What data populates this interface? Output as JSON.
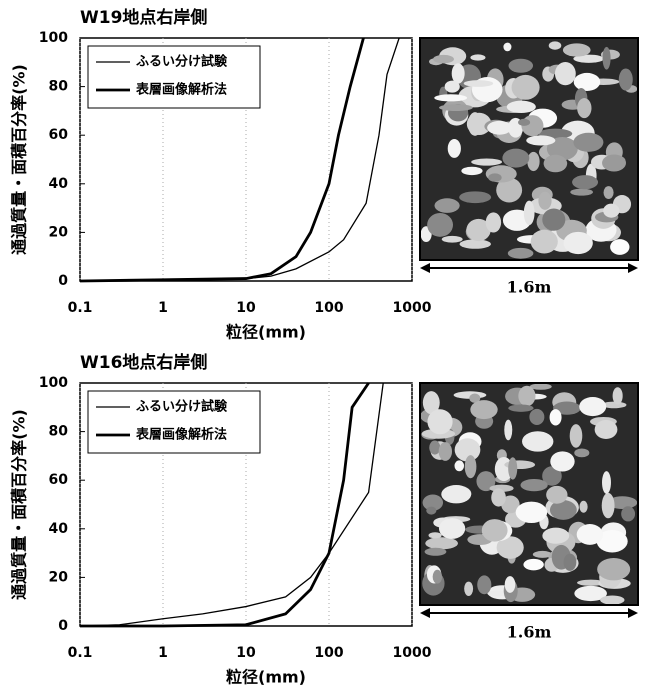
{
  "chart_data": [
    {
      "type": "line",
      "title": "W19地点右岸側",
      "x_label": "粒径(mm)",
      "y_label": "通過質量・面積百分率(%)",
      "xscale": "log",
      "xlim": [
        0.1,
        1000
      ],
      "xticks": [
        0.1,
        1,
        10,
        100,
        1000
      ],
      "ylim": [
        0,
        100
      ],
      "yticks": [
        0,
        20,
        40,
        60,
        80,
        100
      ],
      "grid": true,
      "legend": "upper left",
      "photo_scale_label": "1.6m",
      "series": [
        {
          "name": "ふるい分け試験",
          "color": "#000000",
          "x": [
            0.1,
            1,
            10,
            20,
            40,
            100,
            150,
            280,
            400,
            500,
            700
          ],
          "values": [
            0,
            0.3,
            1,
            2,
            5,
            12,
            17,
            32,
            60,
            85,
            100
          ]
        },
        {
          "name": "表層画像解析法",
          "color": "#000000",
          "x": [
            0.1,
            1,
            10,
            20,
            40,
            60,
            100,
            130,
            180,
            260
          ],
          "values": [
            0,
            0.5,
            1,
            3,
            10,
            20,
            40,
            60,
            80,
            100
          ]
        }
      ]
    },
    {
      "type": "line",
      "title": "W16地点右岸側",
      "x_label": "粒径(mm)",
      "y_label": "通過質量・面積百分率(%)",
      "xscale": "log",
      "xlim": [
        0.1,
        1000
      ],
      "xticks": [
        0.1,
        1,
        10,
        100,
        1000
      ],
      "ylim": [
        0,
        100
      ],
      "yticks": [
        0,
        20,
        40,
        60,
        80,
        100
      ],
      "grid": true,
      "legend": "upper left",
      "photo_scale_label": "1.6m",
      "series": [
        {
          "name": "ふるい分け試験",
          "color": "#000000",
          "x": [
            0.1,
            0.3,
            1,
            3,
            10,
            30,
            60,
            100,
            300,
            450
          ],
          "values": [
            0,
            0.5,
            3,
            5,
            8,
            12,
            20,
            30,
            55,
            100
          ]
        },
        {
          "name": "表層画像解析法",
          "color": "#000000",
          "x": [
            0.1,
            1,
            10,
            30,
            60,
            100,
            150,
            190,
            300
          ],
          "values": [
            0,
            0,
            0.5,
            5,
            15,
            30,
            60,
            90,
            100
          ]
        }
      ]
    }
  ]
}
